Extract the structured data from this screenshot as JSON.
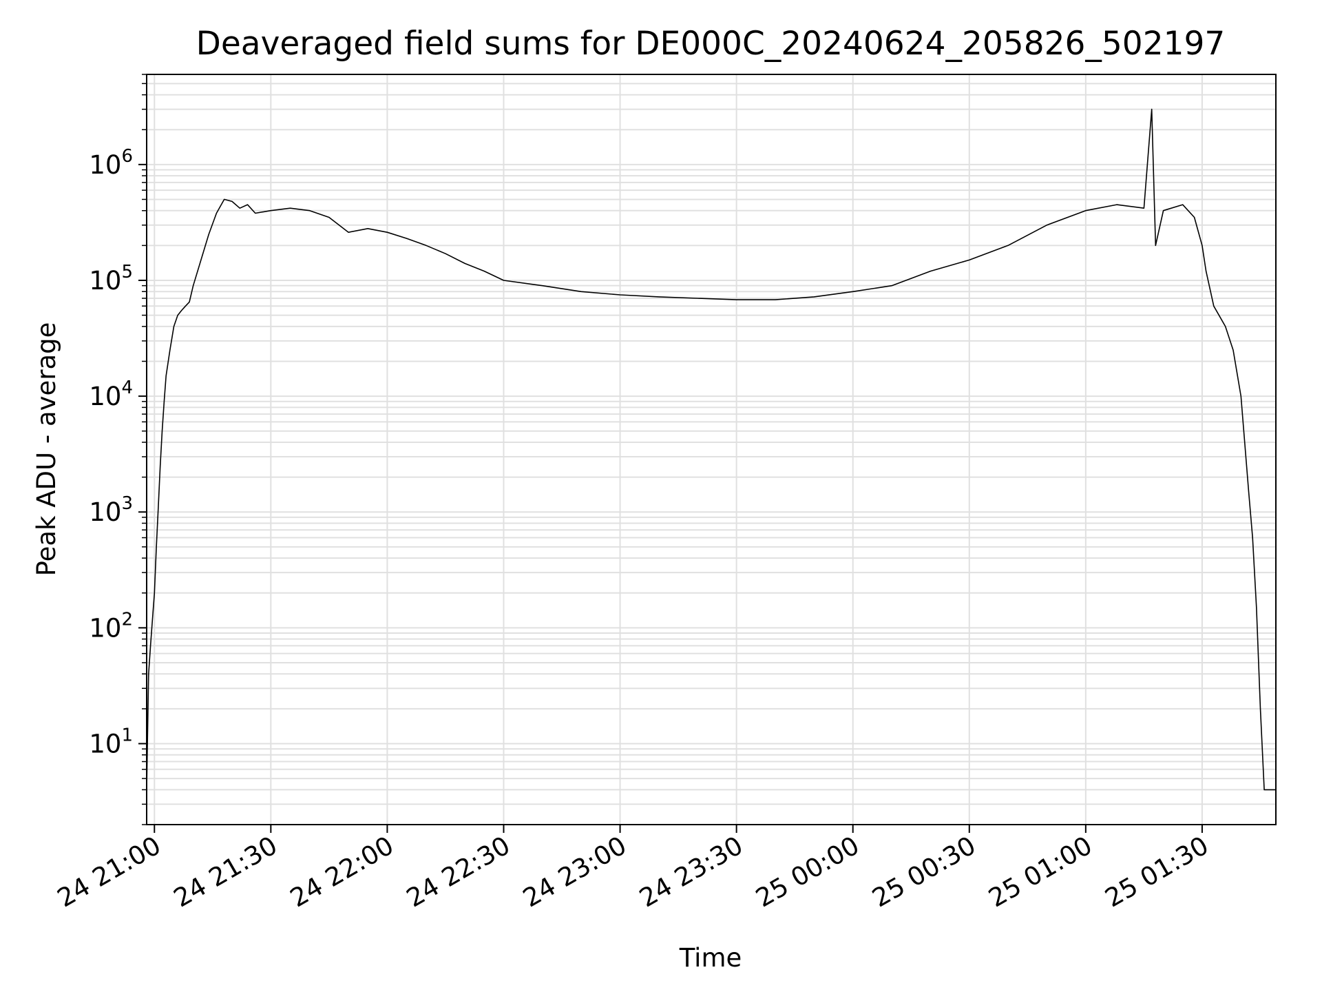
{
  "chart_data": {
    "type": "line",
    "title": "Deaveraged field sums for DE000C_20240624_205826_502197",
    "xlabel": "Time",
    "ylabel": "Peak ADU - average",
    "yscale": "log",
    "ylim": [
      2,
      6000000
    ],
    "xlim": [
      "2024-06-24 20:58",
      "2024-06-25 01:49"
    ],
    "grid": true,
    "line_color": "#000000",
    "grid_color": "#e0e0e0",
    "x_ticks": [
      {
        "t": "2024-06-24 21:00",
        "label": "24 21:00"
      },
      {
        "t": "2024-06-24 21:30",
        "label": "24 21:30"
      },
      {
        "t": "2024-06-24 22:00",
        "label": "24 22:00"
      },
      {
        "t": "2024-06-24 22:30",
        "label": "24 22:30"
      },
      {
        "t": "2024-06-24 23:00",
        "label": "24 23:00"
      },
      {
        "t": "2024-06-24 23:30",
        "label": "24 23:30"
      },
      {
        "t": "2024-06-25 00:00",
        "label": "25 00:00"
      },
      {
        "t": "2024-06-25 00:30",
        "label": "25 00:30"
      },
      {
        "t": "2024-06-25 01:00",
        "label": "25 01:00"
      },
      {
        "t": "2024-06-25 01:30",
        "label": "25 01:30"
      }
    ],
    "y_ticks": [
      {
        "value": 10,
        "base": "10",
        "exp": "1"
      },
      {
        "value": 100,
        "base": "10",
        "exp": "2"
      },
      {
        "value": 1000,
        "base": "10",
        "exp": "3"
      },
      {
        "value": 10000,
        "base": "10",
        "exp": "4"
      },
      {
        "value": 100000,
        "base": "10",
        "exp": "5"
      },
      {
        "value": 1000000,
        "base": "10",
        "exp": "6"
      }
    ],
    "series": [
      {
        "points": [
          [
            "2024-06-24 20:58",
            4
          ],
          [
            "2024-06-24 20:58:30",
            40
          ],
          [
            "2024-06-24 20:59",
            70
          ],
          [
            "2024-06-24 20:59:30",
            120
          ],
          [
            "2024-06-24 21:00",
            200
          ],
          [
            "2024-06-24 21:00:30",
            500
          ],
          [
            "2024-06-24 21:01",
            1100
          ],
          [
            "2024-06-24 21:01:30",
            2500
          ],
          [
            "2024-06-24 21:02",
            5000
          ],
          [
            "2024-06-24 21:02:30",
            9000
          ],
          [
            "2024-06-24 21:03",
            15000
          ],
          [
            "2024-06-24 21:04",
            25000
          ],
          [
            "2024-06-24 21:05",
            40000
          ],
          [
            "2024-06-24 21:06",
            50000
          ],
          [
            "2024-06-24 21:07",
            55000
          ],
          [
            "2024-06-24 21:08",
            60000
          ],
          [
            "2024-06-24 21:09",
            65000
          ],
          [
            "2024-06-24 21:10",
            90000
          ],
          [
            "2024-06-24 21:12",
            150000
          ],
          [
            "2024-06-24 21:14",
            250000
          ],
          [
            "2024-06-24 21:16",
            380000
          ],
          [
            "2024-06-24 21:18",
            500000
          ],
          [
            "2024-06-24 21:20",
            480000
          ],
          [
            "2024-06-24 21:22",
            420000
          ],
          [
            "2024-06-24 21:24",
            450000
          ],
          [
            "2024-06-24 21:26",
            380000
          ],
          [
            "2024-06-24 21:30",
            400000
          ],
          [
            "2024-06-24 21:35",
            420000
          ],
          [
            "2024-06-24 21:40",
            400000
          ],
          [
            "2024-06-24 21:45",
            350000
          ],
          [
            "2024-06-24 21:50",
            260000
          ],
          [
            "2024-06-24 21:55",
            280000
          ],
          [
            "2024-06-24 22:00",
            260000
          ],
          [
            "2024-06-24 22:05",
            230000
          ],
          [
            "2024-06-24 22:10",
            200000
          ],
          [
            "2024-06-24 22:15",
            170000
          ],
          [
            "2024-06-24 22:20",
            140000
          ],
          [
            "2024-06-24 22:25",
            120000
          ],
          [
            "2024-06-24 22:30",
            100000
          ],
          [
            "2024-06-24 22:40",
            90000
          ],
          [
            "2024-06-24 22:50",
            80000
          ],
          [
            "2024-06-24 23:00",
            75000
          ],
          [
            "2024-06-24 23:10",
            72000
          ],
          [
            "2024-06-24 23:20",
            70000
          ],
          [
            "2024-06-24 23:30",
            68000
          ],
          [
            "2024-06-24 23:40",
            68000
          ],
          [
            "2024-06-24 23:50",
            72000
          ],
          [
            "2024-06-25 00:00",
            80000
          ],
          [
            "2024-06-25 00:10",
            90000
          ],
          [
            "2024-06-25 00:20",
            120000
          ],
          [
            "2024-06-25 00:30",
            150000
          ],
          [
            "2024-06-25 00:40",
            200000
          ],
          [
            "2024-06-25 00:50",
            300000
          ],
          [
            "2024-06-25 01:00",
            400000
          ],
          [
            "2024-06-25 01:08",
            450000
          ],
          [
            "2024-06-25 01:15",
            420000
          ],
          [
            "2024-06-25 01:17",
            3000000
          ],
          [
            "2024-06-25 01:18",
            200000
          ],
          [
            "2024-06-25 01:20",
            400000
          ],
          [
            "2024-06-25 01:25",
            450000
          ],
          [
            "2024-06-25 01:28",
            350000
          ],
          [
            "2024-06-25 01:30",
            200000
          ],
          [
            "2024-06-25 01:31",
            120000
          ],
          [
            "2024-06-25 01:33",
            60000
          ],
          [
            "2024-06-25 01:36",
            40000
          ],
          [
            "2024-06-25 01:38",
            25000
          ],
          [
            "2024-06-25 01:40",
            10000
          ],
          [
            "2024-06-25 01:42",
            1500
          ],
          [
            "2024-06-25 01:43",
            600
          ],
          [
            "2024-06-25 01:44",
            150
          ],
          [
            "2024-06-25 01:45",
            20
          ],
          [
            "2024-06-25 01:46",
            4
          ],
          [
            "2024-06-25 01:49",
            4
          ]
        ]
      }
    ]
  }
}
